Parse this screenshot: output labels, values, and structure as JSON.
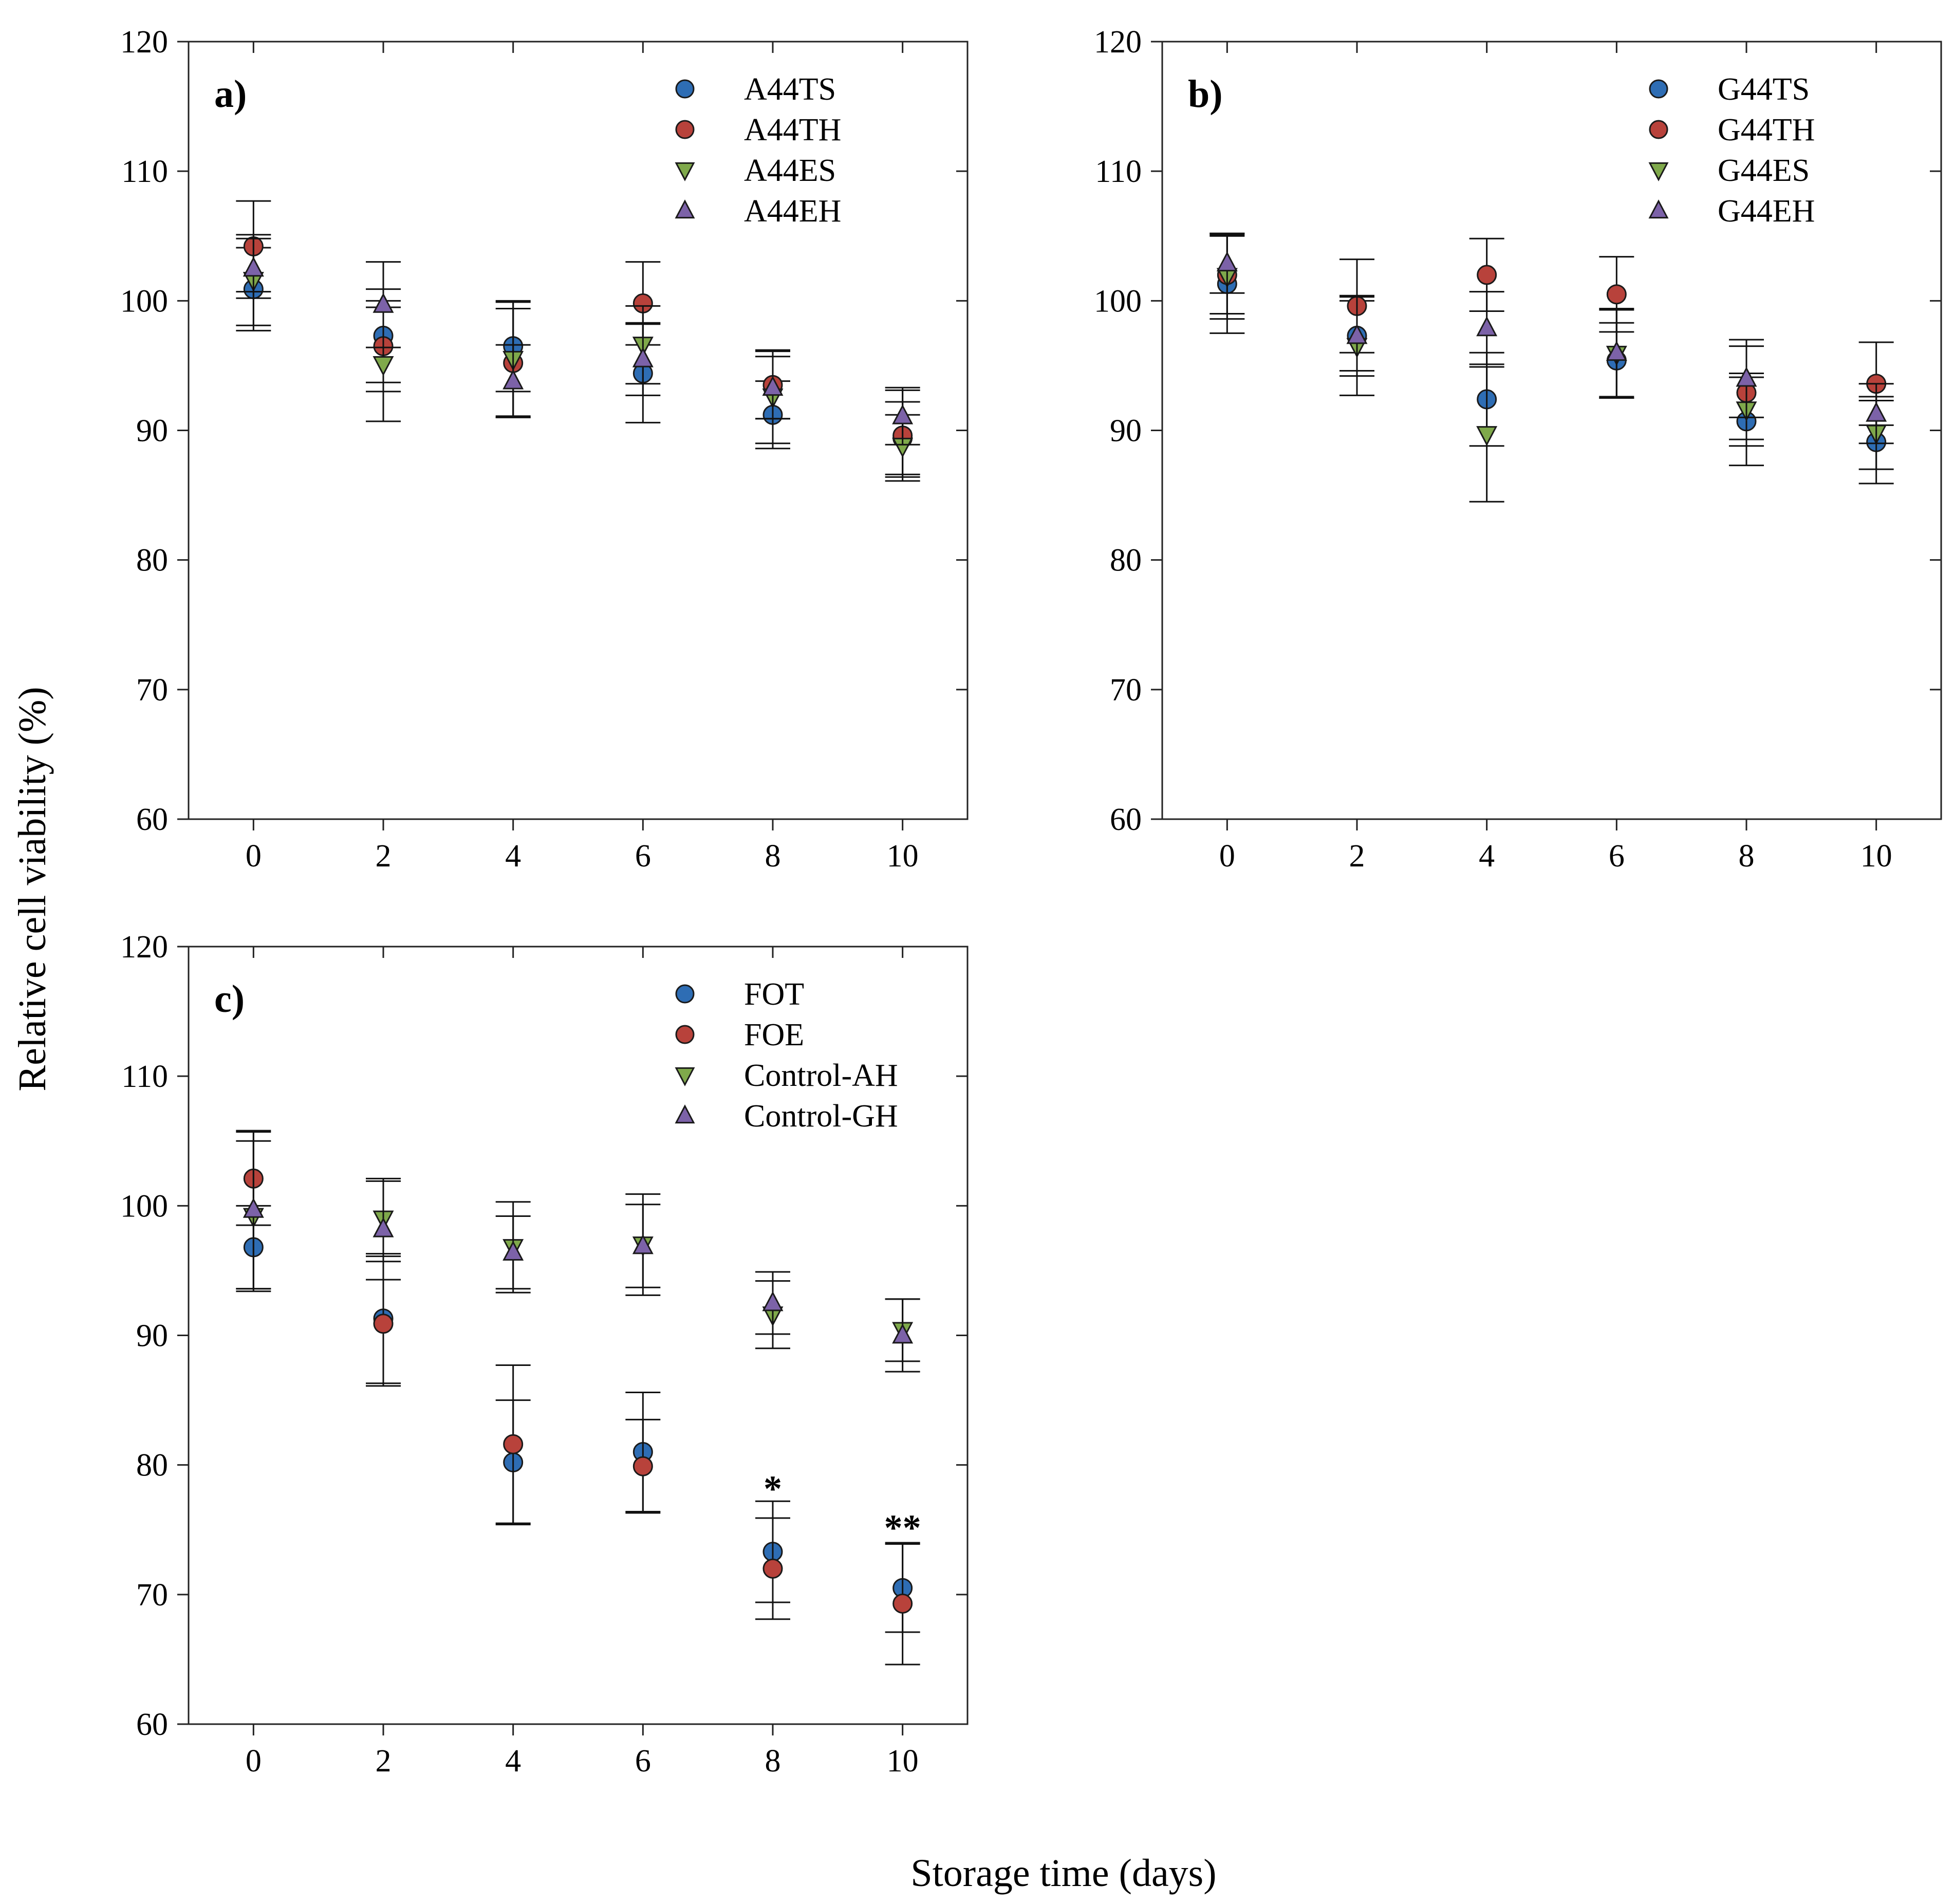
{
  "figure": {
    "ylabel": "Relative cell viability (%)",
    "xlabel": "Storage time (days)"
  },
  "colors": {
    "blue": "#2E6DB4",
    "red": "#B8423B",
    "green": "#7FA94B",
    "purple": "#7C62A8"
  },
  "chart_data": [
    {
      "type": "scatter",
      "panel_label": "a)",
      "x": [
        0,
        2,
        4,
        6,
        8,
        10
      ],
      "xticks": [
        "0",
        "2",
        "4",
        "6",
        "8",
        "10"
      ],
      "ylim": [
        60,
        120
      ],
      "yticks": [
        "60",
        "70",
        "80",
        "90",
        "100",
        "110",
        "120"
      ],
      "legend_position": "top-right",
      "series": [
        {
          "name": "A44TS",
          "marker": "circle",
          "color": "blue",
          "values": [
            100.9,
            97.3,
            96.5,
            94.4,
            91.2,
            89.4
          ],
          "errors": [
            3.2,
            3.6,
            3.5,
            3.8,
            2.6,
            2.8
          ]
        },
        {
          "name": "A44TH",
          "marker": "circle",
          "color": "red",
          "values": [
            104.2,
            96.5,
            95.2,
            99.8,
            93.5,
            89.6
          ],
          "errors": [
            3.5,
            3.5,
            4.2,
            3.2,
            2.6,
            3.5
          ]
        },
        {
          "name": "A44ES",
          "marker": "triangle-down",
          "color": "green",
          "values": [
            101.6,
            95.1,
            95.5,
            96.6,
            92.6,
            88.8
          ],
          "errors": [
            3.5,
            4.4,
            4.4,
            3.0,
            3.6,
            2.4
          ]
        },
        {
          "name": "A44EH",
          "marker": "triangle-up",
          "color": "purple",
          "values": [
            102.5,
            99.7,
            93.8,
            95.5,
            93.3,
            91.1
          ],
          "errors": [
            2.3,
            3.3,
            2.8,
            2.8,
            2.4,
            2.2
          ]
        }
      ]
    },
    {
      "type": "scatter",
      "panel_label": "b)",
      "x": [
        0,
        2,
        4,
        6,
        8,
        10
      ],
      "xticks": [
        "0",
        "2",
        "4",
        "6",
        "8",
        "10"
      ],
      "ylim": [
        60,
        120
      ],
      "yticks": [
        "60",
        "70",
        "80",
        "90",
        "100",
        "110",
        "120"
      ],
      "legend_position": "top-right",
      "series": [
        {
          "name": "G44TS",
          "marker": "circle",
          "color": "blue",
          "values": [
            101.3,
            97.3,
            92.4,
            95.4,
            90.7,
            89.1
          ],
          "errors": [
            3.8,
            2.7,
            3.6,
            2.9,
            3.4,
            3.2
          ]
        },
        {
          "name": "G44TH",
          "marker": "circle",
          "color": "red",
          "values": [
            102.0,
            99.6,
            102.0,
            100.5,
            92.9,
            93.6
          ],
          "errors": [
            3.0,
            3.6,
            2.8,
            2.9,
            3.6,
            3.2
          ]
        },
        {
          "name": "G44ES",
          "marker": "triangle-down",
          "color": "green",
          "values": [
            101.9,
            96.5,
            89.7,
            95.9,
            91.6,
            89.8
          ],
          "errors": [
            3.3,
            3.8,
            5.2,
            3.4,
            2.8,
            2.8
          ]
        },
        {
          "name": "G44EH",
          "marker": "triangle-up",
          "color": "purple",
          "values": [
            102.9,
            97.3,
            97.9,
            96.0,
            94.0,
            91.3
          ],
          "errors": [
            2.3,
            3.1,
            2.8,
            3.4,
            3.0,
            2.3
          ]
        }
      ]
    },
    {
      "type": "scatter",
      "panel_label": "c)",
      "x": [
        0,
        2,
        4,
        6,
        8,
        10
      ],
      "xticks": [
        "0",
        "2",
        "4",
        "6",
        "8",
        "10"
      ],
      "ylim": [
        60,
        120
      ],
      "yticks": [
        "60",
        "70",
        "80",
        "90",
        "100",
        "110",
        "120"
      ],
      "legend_position": "top-right",
      "annotations": [
        {
          "x": 8,
          "y": 78.0,
          "text": "*"
        },
        {
          "x": 10,
          "y": 75.0,
          "text": "**"
        }
      ],
      "series": [
        {
          "name": "FOT",
          "marker": "circle",
          "color": "blue",
          "values": [
            96.8,
            91.3,
            80.2,
            81.0,
            73.3,
            70.5
          ],
          "errors": [
            3.2,
            5.0,
            4.8,
            4.6,
            3.9,
            3.4
          ]
        },
        {
          "name": "FOE",
          "marker": "circle",
          "color": "red",
          "values": [
            102.1,
            90.9,
            81.6,
            79.9,
            72.0,
            69.3
          ],
          "errors": [
            3.6,
            4.8,
            6.1,
            3.6,
            3.9,
            4.7
          ]
        },
        {
          "name": "Control-AH",
          "marker": "triangle-down",
          "color": "green",
          "values": [
            99.2,
            99.0,
            96.8,
            97.0,
            91.6,
            90.4
          ],
          "errors": [
            5.8,
            2.9,
            3.5,
            3.9,
            2.6,
            2.4
          ]
        },
        {
          "name": "Control-GH",
          "marker": "triangle-up",
          "color": "purple",
          "values": [
            99.7,
            98.2,
            96.4,
            96.9,
            92.5,
            90.0
          ],
          "errors": [
            6.1,
            3.9,
            2.8,
            3.2,
            2.4,
            2.8
          ]
        }
      ]
    }
  ]
}
